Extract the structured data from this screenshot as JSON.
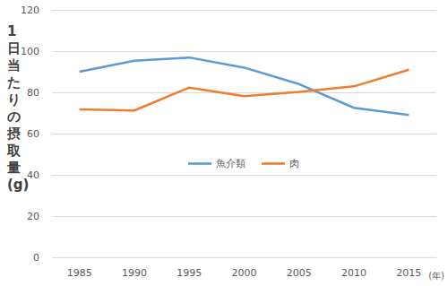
{
  "chart_data": {
    "type": "line",
    "y_label": "1日当たりの摂取量(g)",
    "x_label": "(年)",
    "categories": [
      "1985",
      "1990",
      "1995",
      "2000",
      "2005",
      "2010",
      "2015"
    ],
    "series": [
      {
        "name": "魚介類",
        "color": "#5b9bd5",
        "values": [
          90.0,
          95.3,
          96.9,
          92.0,
          84.0,
          72.5,
          69.0
        ]
      },
      {
        "name": "肉",
        "color": "#ed7d31",
        "values": [
          71.7,
          71.2,
          82.3,
          78.2,
          80.2,
          82.9,
          91.0
        ]
      }
    ],
    "ylim": [
      0,
      120
    ],
    "yticks": [
      0,
      20,
      40,
      60,
      80,
      100,
      120
    ],
    "grid": true,
    "legend": "center"
  }
}
